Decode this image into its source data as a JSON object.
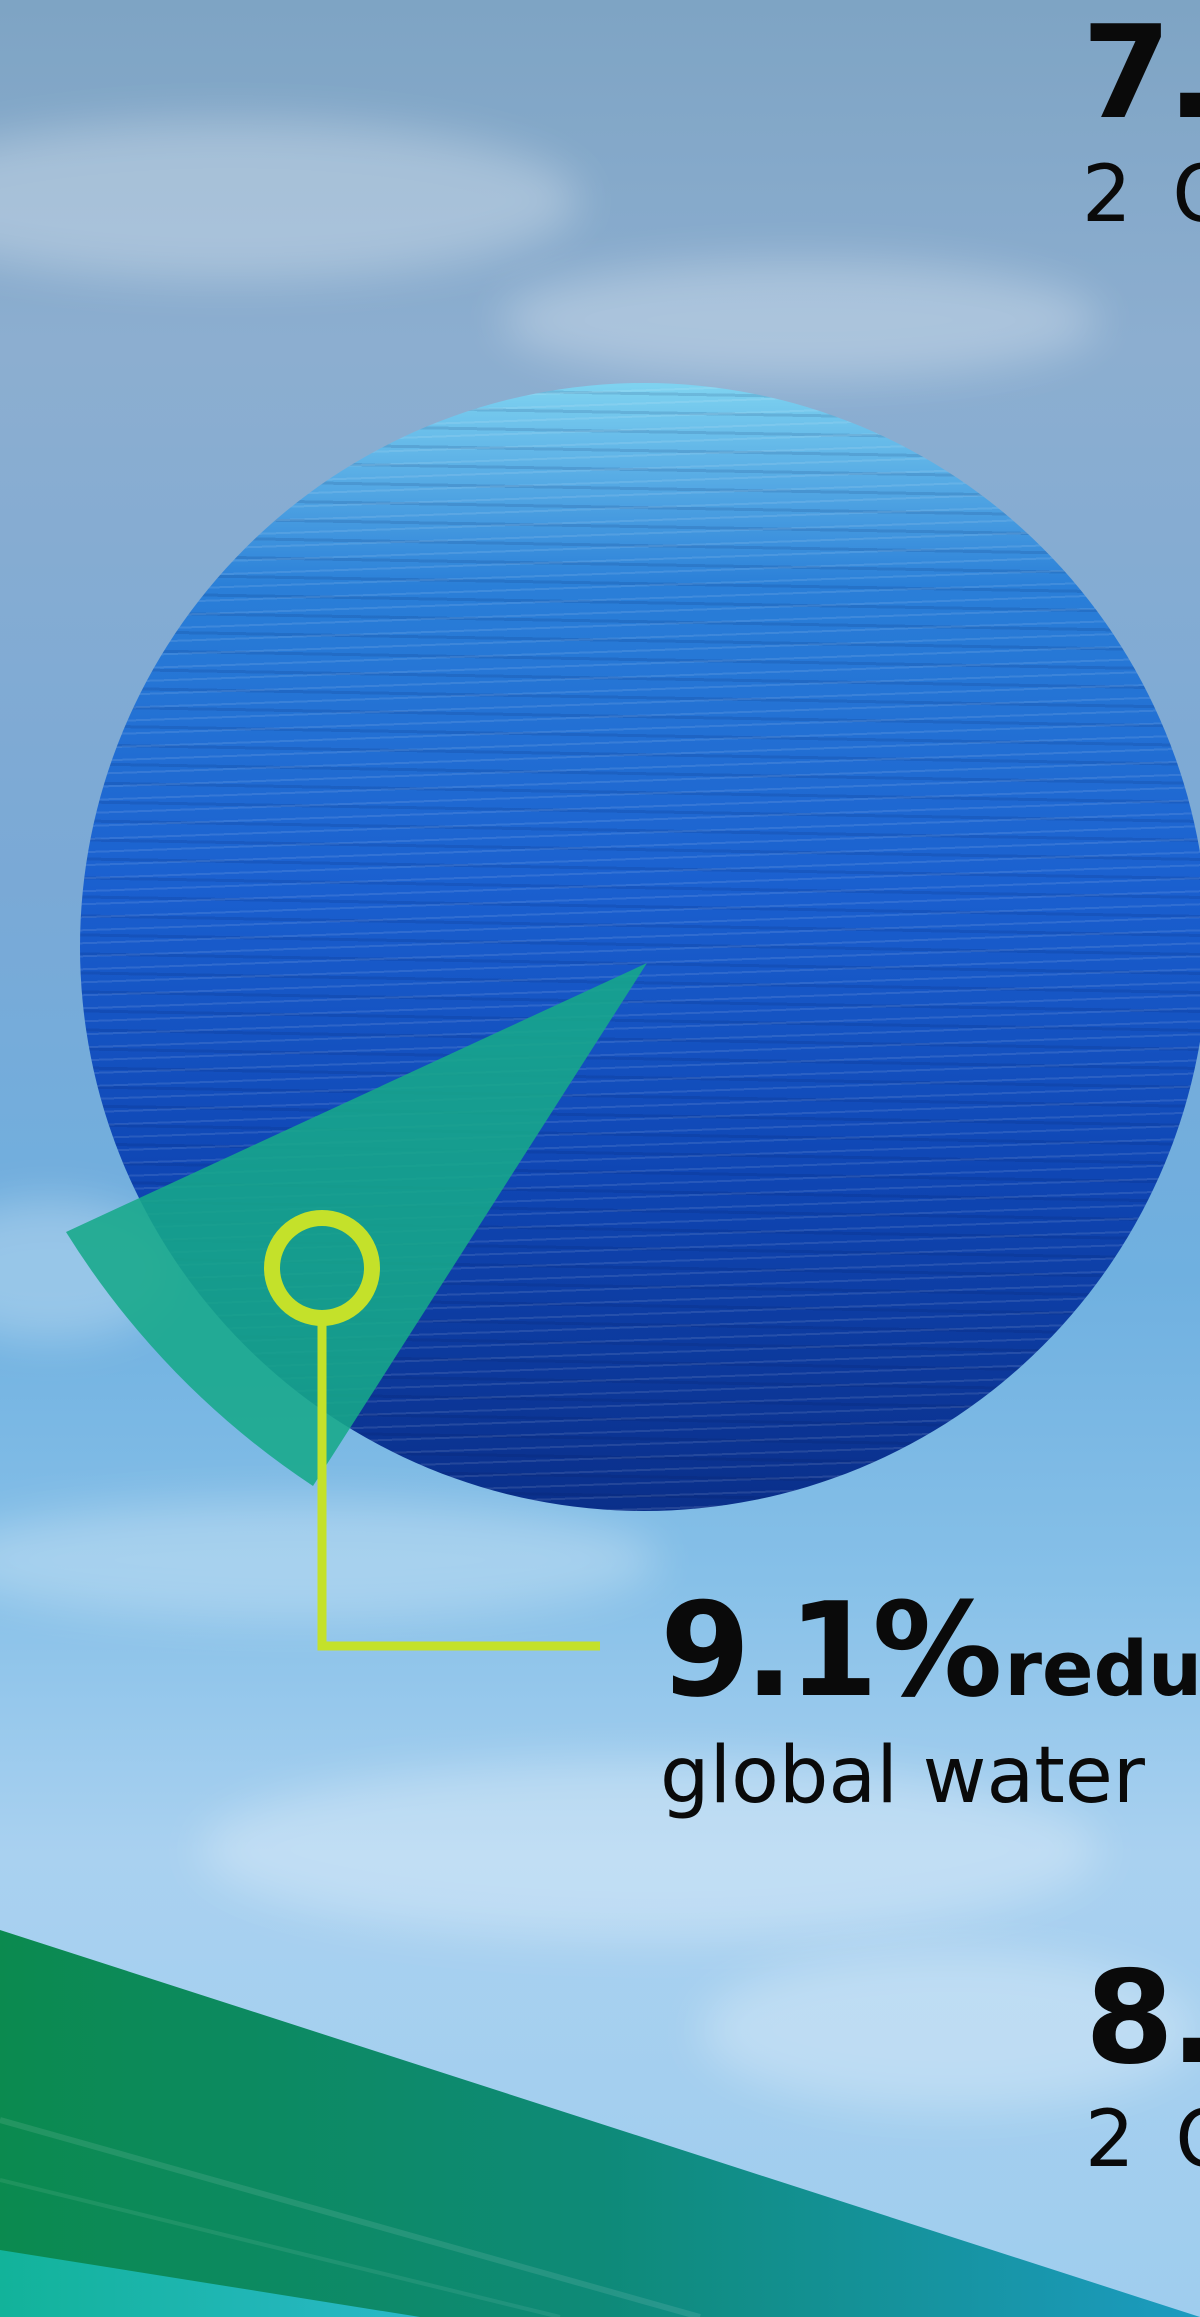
{
  "stats": {
    "top": {
      "value": "7.",
      "unit_prefix": "2 O"
    },
    "main": {
      "value": "9.1%",
      "label": "redu",
      "description": "global water"
    },
    "bottom": {
      "value": "8.",
      "unit_prefix": "2 O"
    }
  },
  "colors": {
    "accent_lime": "#c4e12a",
    "wedge_teal": "#17a88a",
    "ocean_blue": "#1a5fcf",
    "band_green": "#0f8a5a"
  }
}
